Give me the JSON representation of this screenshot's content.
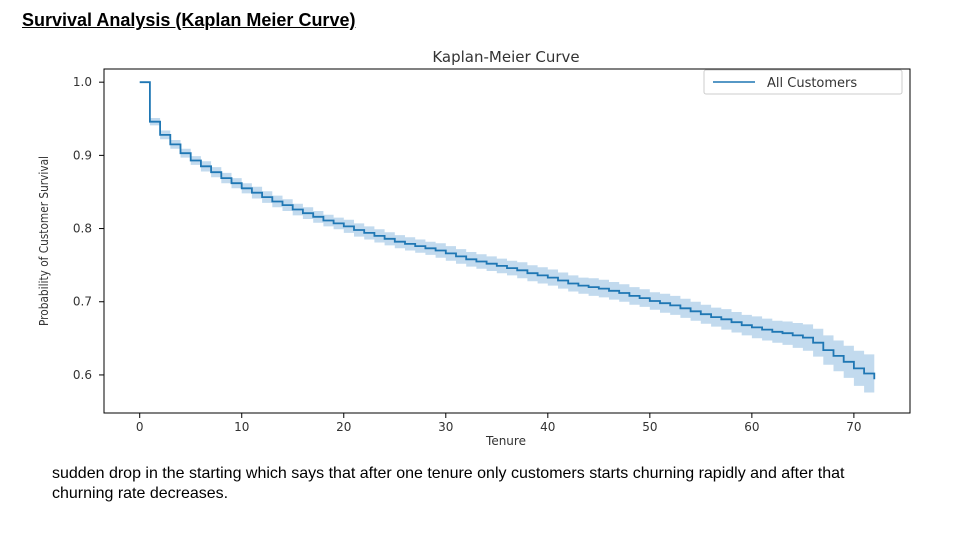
{
  "slide": {
    "title": "Survival Analysis (Kaplan Meier Curve)",
    "caption": "sudden drop in the starting which says that after one tenure only customers starts churning rapidly and after that churning rate decreases."
  },
  "colors": {
    "line": "#1f77b4",
    "band": "#aecde8",
    "axis": "#000000"
  },
  "chart_data": {
    "type": "line",
    "title": "Kaplan-Meier Curve",
    "xlabel": "Tenure",
    "ylabel": "Probability of Customer Survival",
    "xlim": [
      -3.5,
      75.5
    ],
    "ylim": [
      0.548,
      1.018
    ],
    "xticks": [
      0,
      10,
      20,
      30,
      40,
      50,
      60,
      70
    ],
    "yticks": [
      0.6,
      0.7,
      0.8,
      0.9,
      1.0
    ],
    "ytick_labels": [
      "0.6",
      "0.7",
      "0.8",
      "0.9",
      "1.0"
    ],
    "grid": false,
    "legend": {
      "position": "top-right",
      "entries": [
        "All Customers"
      ]
    },
    "series": [
      {
        "name": "All Customers",
        "step": true,
        "x": [
          0,
          1,
          2,
          3,
          4,
          5,
          6,
          7,
          8,
          9,
          10,
          11,
          12,
          13,
          14,
          15,
          16,
          17,
          18,
          19,
          20,
          21,
          22,
          23,
          24,
          25,
          26,
          27,
          28,
          29,
          30,
          31,
          32,
          33,
          34,
          35,
          36,
          37,
          38,
          39,
          40,
          41,
          42,
          43,
          44,
          45,
          46,
          47,
          48,
          49,
          50,
          51,
          52,
          53,
          54,
          55,
          56,
          57,
          58,
          59,
          60,
          61,
          62,
          63,
          64,
          65,
          66,
          67,
          68,
          69,
          70,
          71,
          72
        ],
        "y": [
          1.0,
          0.946,
          0.928,
          0.915,
          0.903,
          0.893,
          0.885,
          0.877,
          0.869,
          0.862,
          0.855,
          0.849,
          0.843,
          0.837,
          0.832,
          0.826,
          0.821,
          0.816,
          0.811,
          0.807,
          0.803,
          0.798,
          0.794,
          0.79,
          0.786,
          0.782,
          0.779,
          0.776,
          0.773,
          0.77,
          0.766,
          0.762,
          0.758,
          0.755,
          0.752,
          0.749,
          0.746,
          0.743,
          0.739,
          0.736,
          0.733,
          0.729,
          0.725,
          0.722,
          0.72,
          0.718,
          0.715,
          0.712,
          0.708,
          0.705,
          0.701,
          0.698,
          0.695,
          0.691,
          0.687,
          0.683,
          0.679,
          0.676,
          0.672,
          0.668,
          0.665,
          0.662,
          0.659,
          0.657,
          0.654,
          0.651,
          0.644,
          0.634,
          0.626,
          0.618,
          0.609,
          0.602,
          0.594
        ],
        "ci_lower": [
          1.0,
          0.941,
          0.922,
          0.909,
          0.897,
          0.887,
          0.878,
          0.87,
          0.862,
          0.855,
          0.848,
          0.841,
          0.835,
          0.829,
          0.824,
          0.818,
          0.813,
          0.808,
          0.803,
          0.799,
          0.794,
          0.789,
          0.785,
          0.781,
          0.777,
          0.773,
          0.77,
          0.767,
          0.764,
          0.76,
          0.756,
          0.752,
          0.748,
          0.745,
          0.742,
          0.739,
          0.736,
          0.732,
          0.728,
          0.725,
          0.722,
          0.718,
          0.714,
          0.711,
          0.708,
          0.706,
          0.703,
          0.7,
          0.696,
          0.693,
          0.689,
          0.685,
          0.682,
          0.678,
          0.674,
          0.67,
          0.666,
          0.662,
          0.658,
          0.654,
          0.65,
          0.647,
          0.644,
          0.641,
          0.637,
          0.633,
          0.625,
          0.614,
          0.605,
          0.596,
          0.585,
          0.576,
          0.572
        ],
        "ci_upper": [
          1.0,
          0.951,
          0.934,
          0.921,
          0.909,
          0.899,
          0.892,
          0.884,
          0.876,
          0.869,
          0.862,
          0.857,
          0.851,
          0.845,
          0.84,
          0.834,
          0.829,
          0.824,
          0.819,
          0.815,
          0.812,
          0.807,
          0.803,
          0.799,
          0.795,
          0.791,
          0.788,
          0.785,
          0.782,
          0.78,
          0.776,
          0.772,
          0.768,
          0.765,
          0.762,
          0.759,
          0.756,
          0.754,
          0.75,
          0.747,
          0.744,
          0.74,
          0.736,
          0.733,
          0.732,
          0.73,
          0.727,
          0.724,
          0.72,
          0.717,
          0.713,
          0.711,
          0.708,
          0.704,
          0.7,
          0.696,
          0.692,
          0.69,
          0.686,
          0.682,
          0.68,
          0.677,
          0.674,
          0.673,
          0.671,
          0.669,
          0.663,
          0.654,
          0.647,
          0.64,
          0.633,
          0.628,
          0.62
        ]
      }
    ]
  }
}
